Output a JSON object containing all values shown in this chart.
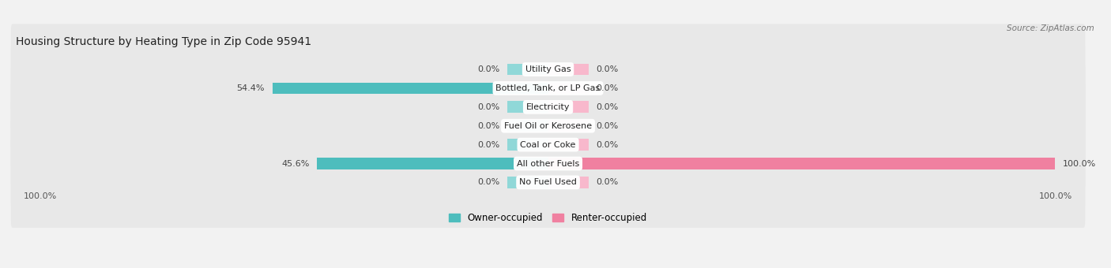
{
  "title": "Housing Structure by Heating Type in Zip Code 95941",
  "source": "Source: ZipAtlas.com",
  "categories": [
    "Utility Gas",
    "Bottled, Tank, or LP Gas",
    "Electricity",
    "Fuel Oil or Kerosene",
    "Coal or Coke",
    "All other Fuels",
    "No Fuel Used"
  ],
  "owner_values": [
    0.0,
    54.4,
    0.0,
    0.0,
    0.0,
    45.6,
    0.0
  ],
  "renter_values": [
    0.0,
    0.0,
    0.0,
    0.0,
    0.0,
    100.0,
    0.0
  ],
  "owner_color": "#4dbdbd",
  "renter_color": "#f080a0",
  "owner_stub_color": "#90d8d8",
  "renter_stub_color": "#f8b8cc",
  "bg_color": "#f2f2f2",
  "row_bg": "#e8e8e8",
  "row_bg_alt": "#eeeeee",
  "xlim": 100,
  "stub_size": 8,
  "title_fontsize": 10,
  "label_fontsize": 8,
  "value_fontsize": 8,
  "axis_label_left": "100.0%",
  "axis_label_right": "100.0%"
}
